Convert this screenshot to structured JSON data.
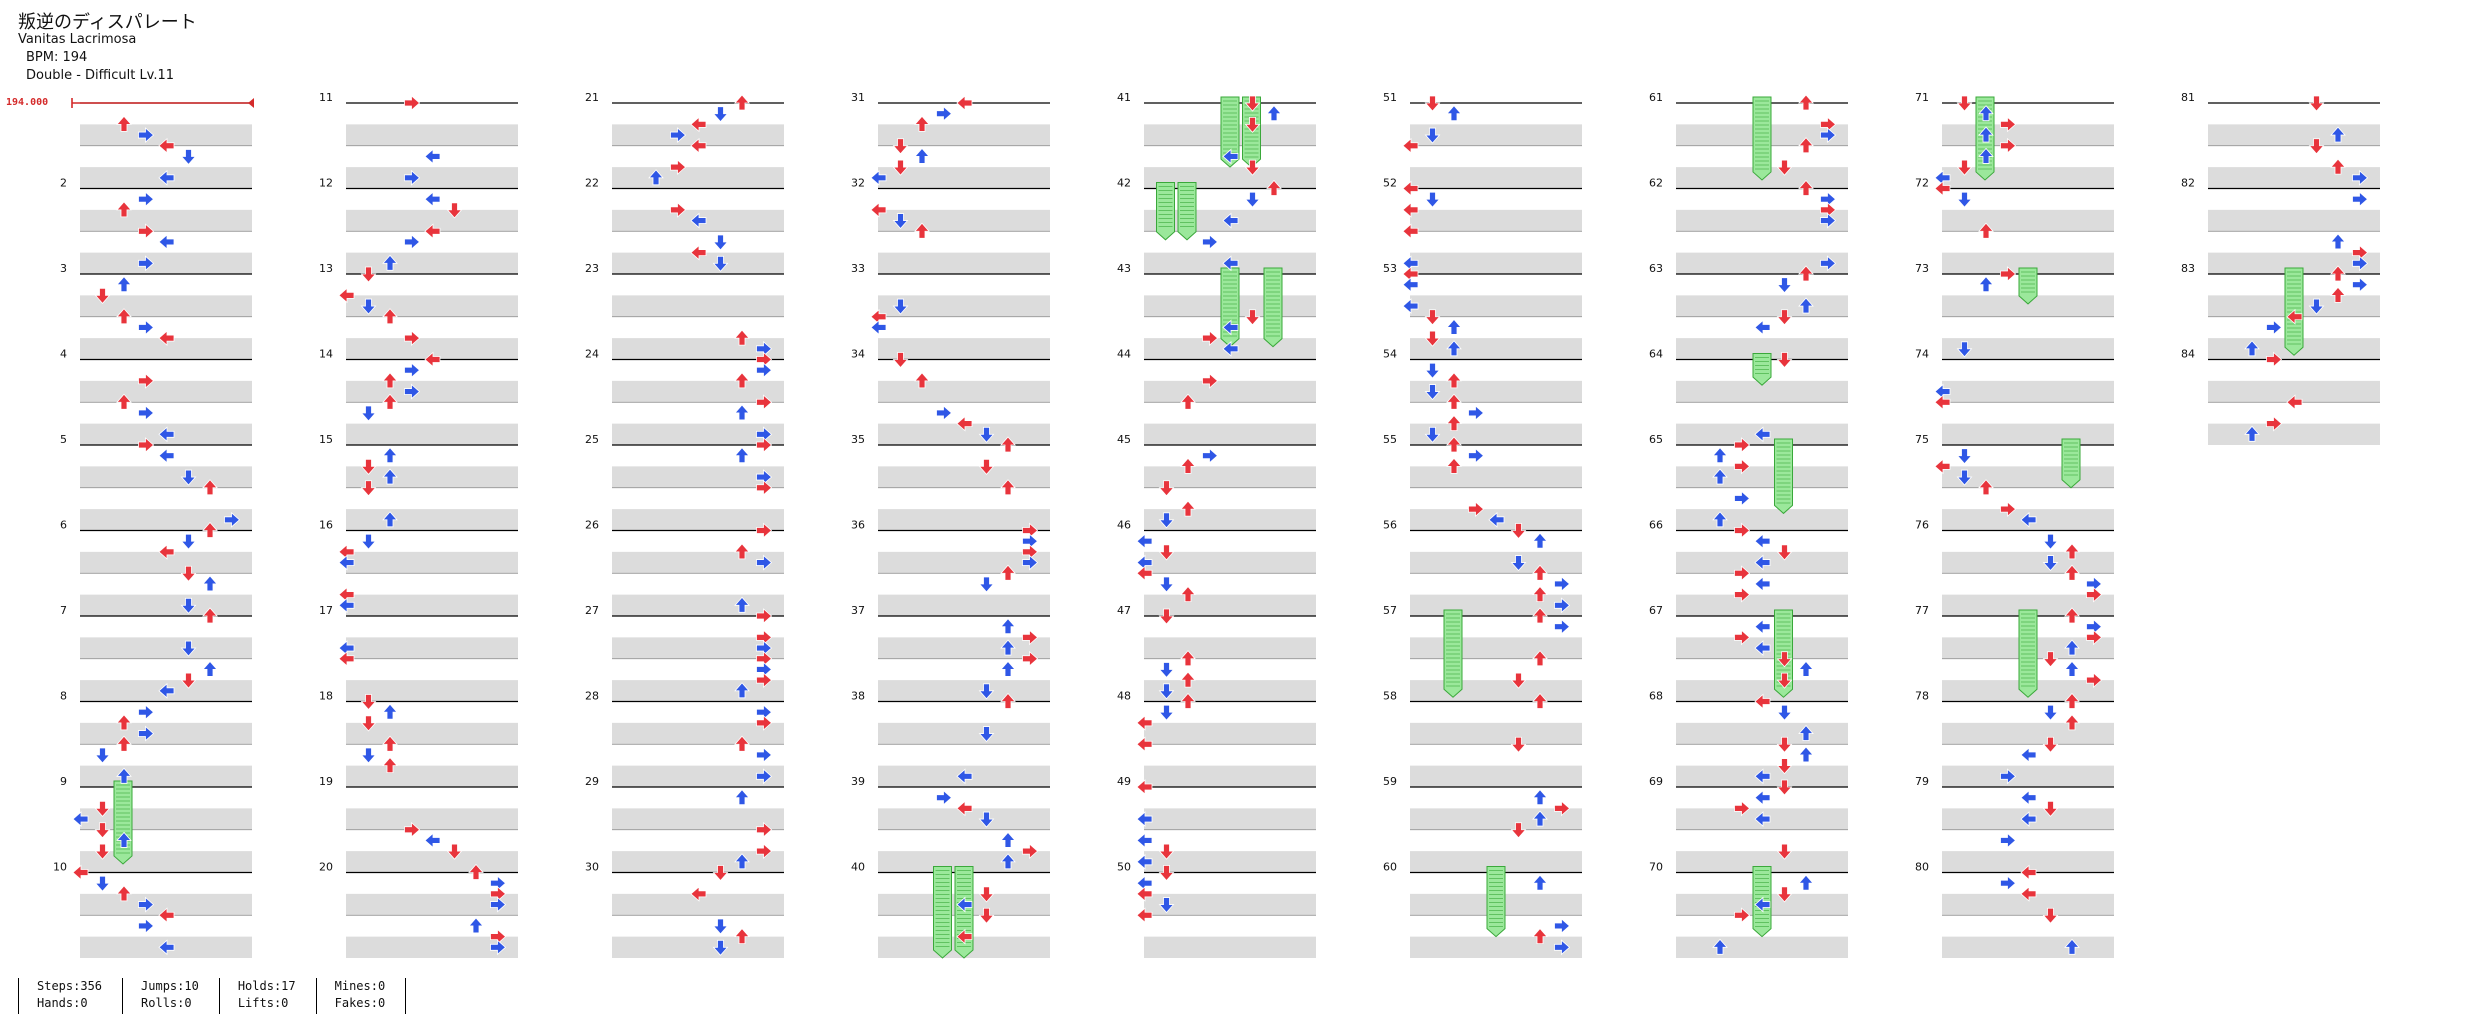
{
  "song": {
    "title": "叛逆のディスパレート",
    "artist": "Vanitas Lacrimosa",
    "bpm_text": "BPM: 194",
    "difficulty_text": "Double - Difficult  Lv.11",
    "bpm_marker": "194.000"
  },
  "stats": {
    "steps": "Steps:356",
    "hands": "Hands:0",
    "jumps": "Jumps:10",
    "rolls": "Rolls:0",
    "holds": "Holds:17",
    "lifts": "Lifts:0",
    "mines": "Mines:0",
    "fakes": "Fakes:0"
  },
  "colors": {
    "red_arrow": "#e8343c",
    "blue_arrow": "#2f57e6",
    "hold_fill": "#9be89b",
    "band_gray": "#dcdcdc",
    "bpm_red": "#d42a2a"
  },
  "chart_data": {
    "type": "step-chart",
    "lanes": 8,
    "lane_directions": [
      "left",
      "down",
      "up",
      "right",
      "left",
      "down",
      "up",
      "right"
    ],
    "first_measure": 1,
    "last_measure": 84,
    "measures_per_column": 10,
    "measure_labels_shown": [
      2,
      3,
      4,
      5,
      6,
      7,
      8,
      9,
      10,
      11,
      12,
      13,
      14,
      15,
      16,
      17,
      18,
      19,
      20,
      21,
      22,
      23,
      24,
      25,
      26,
      27,
      28,
      29,
      30,
      31,
      32,
      33,
      34,
      35,
      36,
      37,
      38,
      39,
      40,
      41,
      42,
      43,
      44,
      45,
      46,
      47,
      48,
      49,
      50,
      51,
      52,
      53,
      54,
      55,
      56,
      57,
      58,
      59,
      60,
      61,
      62,
      63,
      64,
      65,
      66,
      67,
      68,
      69,
      70,
      71,
      72,
      73,
      74,
      75,
      76,
      77,
      78,
      79,
      80,
      81,
      82,
      83,
      84
    ],
    "arrow_colors": [
      "red",
      "blue"
    ],
    "holds": [
      {
        "lane": 2,
        "from_measure": 9,
        "to_measure": 9.9
      },
      {
        "lane": 3,
        "from_measure": 40,
        "to_measure": 41
      },
      {
        "lane": 4,
        "from_measure": 40,
        "to_measure": 41
      },
      {
        "lane": 4,
        "from_measure": 41,
        "to_measure": 41.75
      },
      {
        "lane": 5,
        "from_measure": 41,
        "to_measure": 41.75
      },
      {
        "lane": 1,
        "from_measure": 42,
        "to_measure": 42.6
      },
      {
        "lane": 2,
        "from_measure": 42,
        "to_measure": 42.6
      },
      {
        "lane": 4,
        "from_measure": 43,
        "to_measure": 43.85
      },
      {
        "lane": 6,
        "from_measure": 43,
        "to_measure": 43.85
      },
      {
        "lane": 4,
        "from_measure": 61,
        "to_measure": 61.9
      },
      {
        "lane": 4,
        "from_measure": 64,
        "to_measure": 64.3
      },
      {
        "lane": 5,
        "from_measure": 65,
        "to_measure": 65.8
      },
      {
        "lane": 2,
        "from_measure": 57,
        "to_measure": 57.95
      },
      {
        "lane": 5,
        "from_measure": 67,
        "to_measure": 67.95
      },
      {
        "lane": 4,
        "from_measure": 60,
        "to_measure": 60.75
      },
      {
        "lane": 4,
        "from_measure": 70,
        "to_measure": 70.75
      },
      {
        "lane": 2,
        "from_measure": 71,
        "to_measure": 71.9
      },
      {
        "lane": 4,
        "from_measure": 73,
        "to_measure": 73.35
      },
      {
        "lane": 6,
        "from_measure": 75,
        "to_measure": 75.5
      },
      {
        "lane": 4,
        "from_measure": 77,
        "to_measure": 77.95
      },
      {
        "lane": 4,
        "from_measure": 83,
        "to_measure": 83.95
      }
    ]
  }
}
